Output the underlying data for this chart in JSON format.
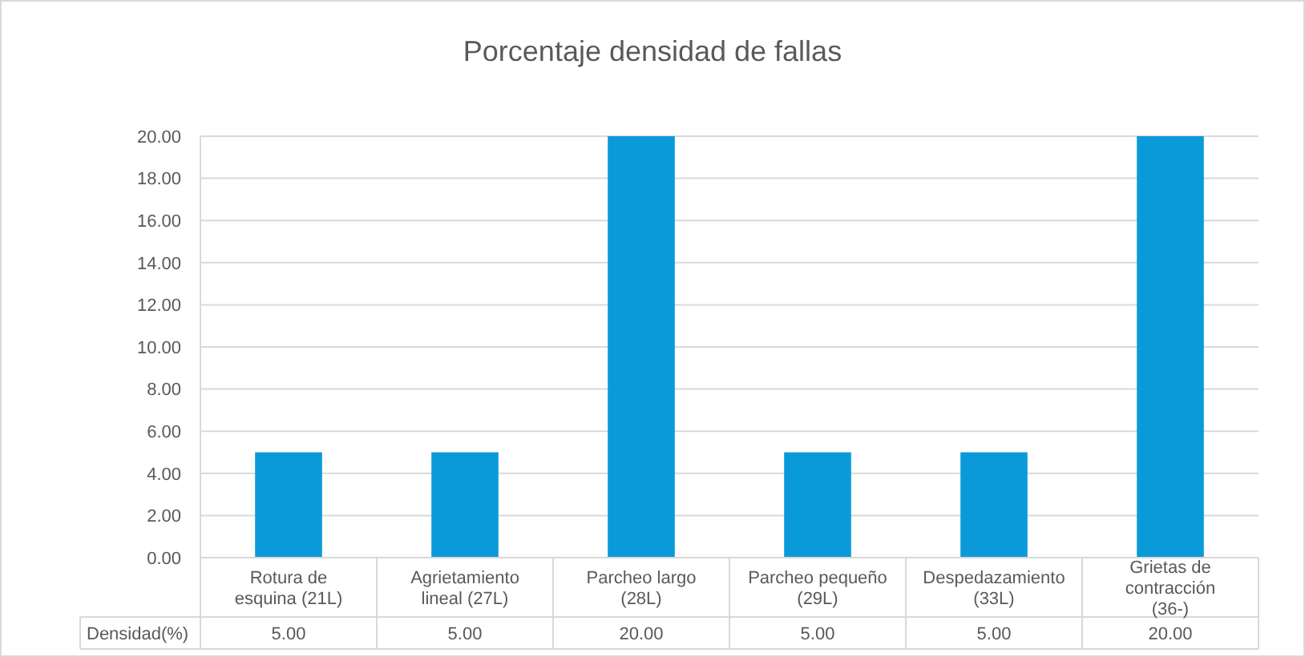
{
  "chart_data": {
    "type": "bar",
    "title": "Porcentaje densidad de fallas",
    "categories": [
      "Rotura de esquina (21L)",
      "Agrietamiento lineal (27L)",
      "Parcheo largo (28L)",
      "Parcheo pequeño (29L)",
      "Despedazamiento (33L)",
      "Grietas de contracción (36-)"
    ],
    "series": [
      {
        "name": "Densidad(%)",
        "color": "#0b9ad9",
        "values": [
          5,
          5,
          20,
          5,
          5,
          20
        ],
        "value_labels": [
          "5.00",
          "5.00",
          "20.00",
          "5.00",
          "5.00",
          "20.00"
        ]
      }
    ],
    "ylim": [
      0,
      20
    ],
    "yticks": [
      {
        "value": 0,
        "label": "0.00"
      },
      {
        "value": 2,
        "label": "2.00"
      },
      {
        "value": 4,
        "label": "4.00"
      },
      {
        "value": 6,
        "label": "6.00"
      },
      {
        "value": 8,
        "label": "8.00"
      },
      {
        "value": 10,
        "label": "10.00"
      },
      {
        "value": 12,
        "label": "12.00"
      },
      {
        "value": 14,
        "label": "14.00"
      },
      {
        "value": 16,
        "label": "16.00"
      },
      {
        "value": 18,
        "label": "18.00"
      },
      {
        "value": 20,
        "label": "20.00"
      }
    ],
    "grid": true,
    "legend": "bottom"
  }
}
